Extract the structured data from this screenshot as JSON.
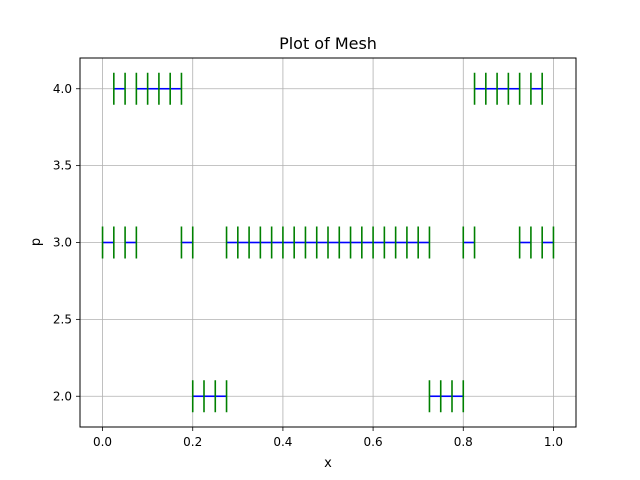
{
  "chart_data": {
    "type": "mesh",
    "title": "Plot of Mesh",
    "xlabel": "x",
    "ylabel": "p",
    "xlim": [
      -0.05,
      1.05
    ],
    "ylim": [
      1.8,
      4.2
    ],
    "xticks": [
      0.0,
      0.2,
      0.4,
      0.6,
      0.8,
      1.0
    ],
    "xtick_labels": [
      "0.0",
      "0.2",
      "0.4",
      "0.6",
      "0.8",
      "1.0"
    ],
    "yticks": [
      2.0,
      2.5,
      3.0,
      3.5,
      4.0
    ],
    "ytick_labels": [
      "2.0",
      "2.5",
      "3.0",
      "3.5",
      "4.0"
    ],
    "grid": true,
    "segment_color": "#0000ff",
    "node_color": "#008000",
    "levels": [
      {
        "p": 4.0,
        "segments": [
          [
            0.025,
            0.05
          ],
          [
            0.075,
            0.1
          ],
          [
            0.1,
            0.125
          ],
          [
            0.125,
            0.15
          ],
          [
            0.15,
            0.175
          ],
          [
            0.825,
            0.85
          ],
          [
            0.85,
            0.875
          ],
          [
            0.875,
            0.9
          ],
          [
            0.9,
            0.925
          ],
          [
            0.95,
            0.975
          ]
        ]
      },
      {
        "p": 3.0,
        "segments": [
          [
            0.0,
            0.025
          ],
          [
            0.05,
            0.075
          ],
          [
            0.175,
            0.2
          ],
          [
            0.275,
            0.3
          ],
          [
            0.3,
            0.325
          ],
          [
            0.325,
            0.35
          ],
          [
            0.35,
            0.375
          ],
          [
            0.375,
            0.4
          ],
          [
            0.4,
            0.425
          ],
          [
            0.425,
            0.45
          ],
          [
            0.45,
            0.475
          ],
          [
            0.475,
            0.5
          ],
          [
            0.5,
            0.525
          ],
          [
            0.525,
            0.55
          ],
          [
            0.55,
            0.575
          ],
          [
            0.575,
            0.6
          ],
          [
            0.6,
            0.625
          ],
          [
            0.625,
            0.65
          ],
          [
            0.65,
            0.675
          ],
          [
            0.675,
            0.7
          ],
          [
            0.7,
            0.725
          ],
          [
            0.8,
            0.825
          ],
          [
            0.925,
            0.95
          ],
          [
            0.975,
            1.0
          ]
        ]
      },
      {
        "p": 2.0,
        "segments": [
          [
            0.2,
            0.225
          ],
          [
            0.225,
            0.25
          ],
          [
            0.25,
            0.275
          ],
          [
            0.725,
            0.75
          ],
          [
            0.75,
            0.775
          ],
          [
            0.775,
            0.8
          ]
        ]
      }
    ]
  }
}
